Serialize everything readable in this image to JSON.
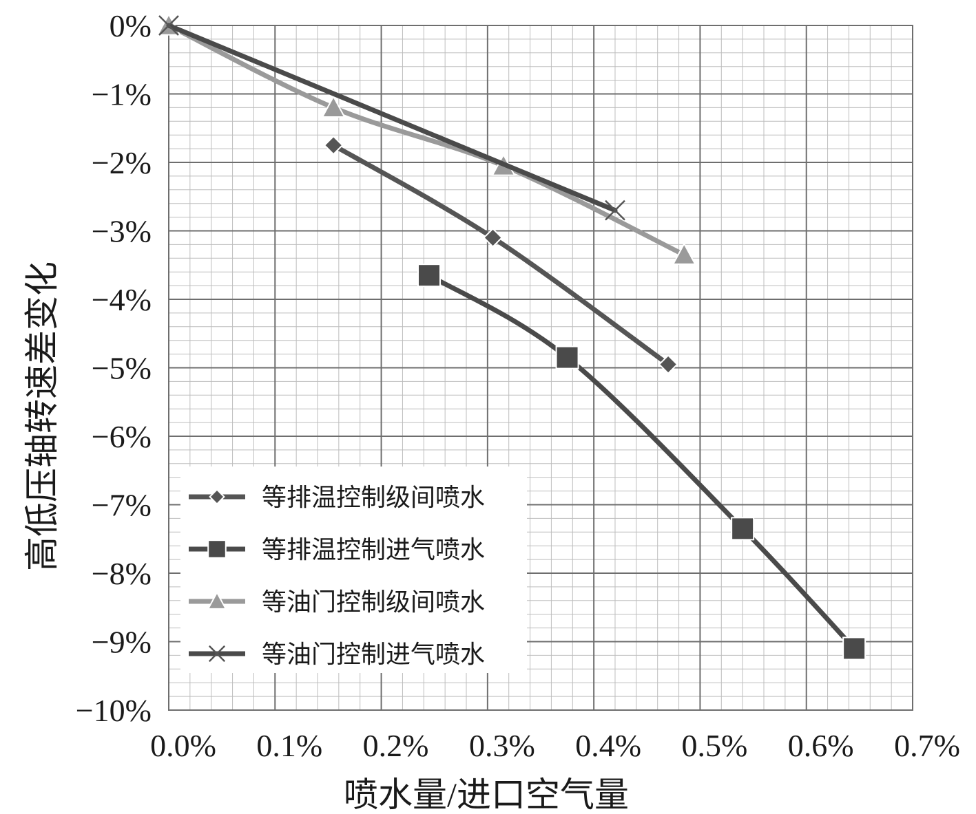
{
  "chart_data": {
    "type": "line",
    "xlabel": "喷水量/进口空气量",
    "ylabel": "高低压轴转速差变化",
    "xlim": [
      0.0,
      0.7
    ],
    "ylim": [
      -10,
      0
    ],
    "x_ticks": [
      "0.0%",
      "0.1%",
      "0.2%",
      "0.3%",
      "0.4%",
      "0.5%",
      "0.6%",
      "0.7%"
    ],
    "y_ticks": [
      "0%",
      "−1%",
      "−2%",
      "−3%",
      "−4%",
      "−5%",
      "−6%",
      "−7%",
      "−8%",
      "−9%",
      "−10%"
    ],
    "grid": true,
    "legend_position": "bottom-left",
    "series": [
      {
        "name": "等排温控制级间喷水",
        "marker": "diamond",
        "color": "#555555",
        "x": [
          0.155,
          0.305,
          0.47
        ],
        "y": [
          -1.75,
          -3.1,
          -4.95
        ]
      },
      {
        "name": "等排温控制进气喷水",
        "marker": "square",
        "color": "#4a4a4a",
        "x": [
          0.245,
          0.375,
          0.54,
          0.645
        ],
        "y": [
          -3.65,
          -4.85,
          -7.35,
          -9.1
        ]
      },
      {
        "name": "等油门控制级间喷水",
        "marker": "triangle",
        "color": "#9a9a9a",
        "x": [
          0.0,
          0.155,
          0.315,
          0.485
        ],
        "y": [
          0.0,
          -1.2,
          -2.05,
          -3.35
        ]
      },
      {
        "name": "等油门控制进气喷水",
        "marker": "x",
        "color": "#4a4a4a",
        "x": [
          0.0,
          0.42
        ],
        "y": [
          0.0,
          -2.7
        ]
      }
    ]
  }
}
